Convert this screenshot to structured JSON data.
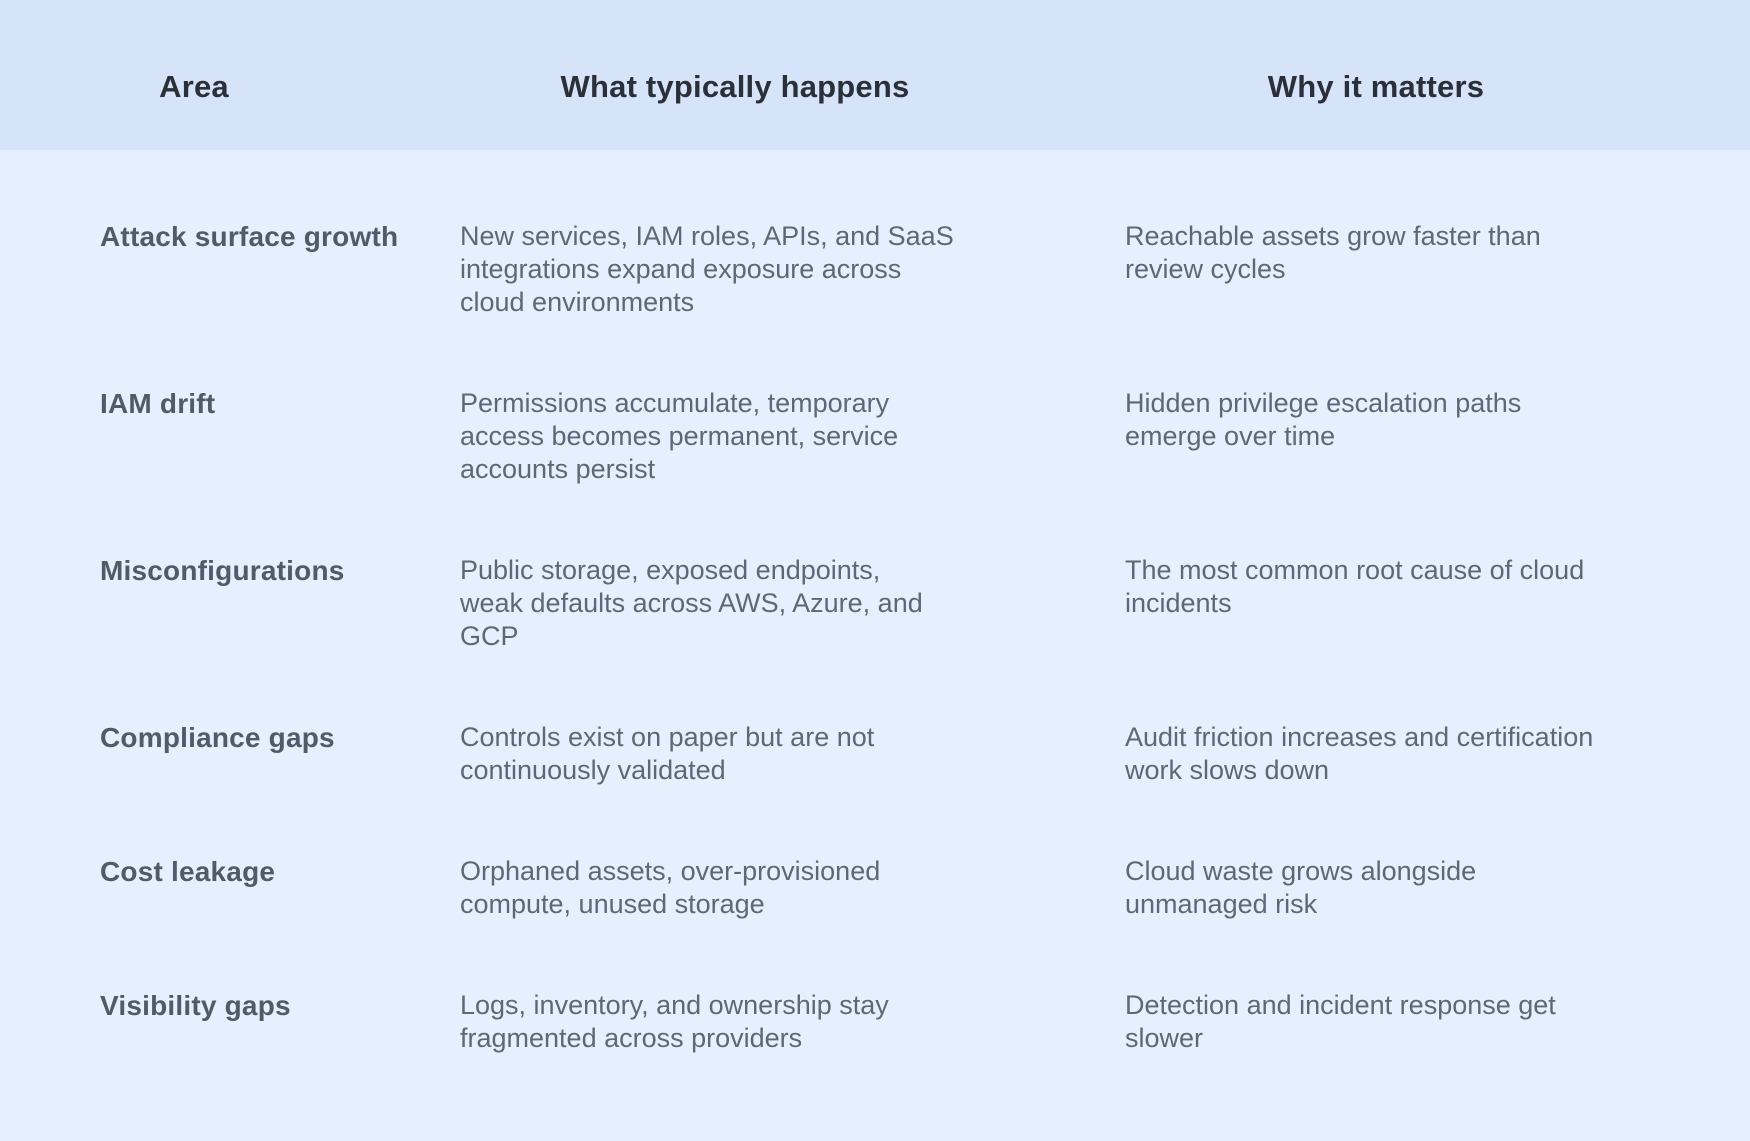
{
  "colors": {
    "header_bg": "#d6e4fa",
    "body_bg": "#e4f0fd",
    "header_text": "#2b2f38",
    "area_text": "#515b68",
    "body_text": "#5e6875"
  },
  "table": {
    "headers": {
      "area": "Area",
      "happens": "What typically happens",
      "matters": "Why it matters"
    },
    "rows": [
      {
        "area": "Attack surface growth",
        "happens_lines": [
          "New services, IAM roles, APIs, and SaaS",
          "integrations expand exposure across",
          "cloud environments"
        ],
        "matters_lines": [
          "Reachable assets grow faster than",
          "review cycles"
        ]
      },
      {
        "area": "IAM drift",
        "happens_lines": [
          "Permissions accumulate, temporary",
          "access becomes permanent, service",
          "accounts persist"
        ],
        "matters_lines": [
          "Hidden privilege escalation paths",
          "emerge over time"
        ]
      },
      {
        "area": "Misconfigurations",
        "happens_lines": [
          "Public storage, exposed endpoints,",
          "weak defaults across AWS, Azure, and",
          "GCP"
        ],
        "matters_lines": [
          "The most common root cause of cloud",
          "incidents"
        ]
      },
      {
        "area": "Compliance gaps",
        "happens_lines": [
          "Controls exist on paper but are not",
          "continuously validated"
        ],
        "matters_lines": [
          "Audit friction increases and certification",
          "work slows down"
        ]
      },
      {
        "area": "Cost leakage",
        "happens_lines": [
          "Orphaned assets, over-provisioned",
          "compute, unused storage"
        ],
        "matters_lines": [
          "Cloud waste grows alongside",
          "unmanaged risk"
        ]
      },
      {
        "area": "Visibility gaps",
        "happens_lines": [
          "Logs, inventory, and ownership stay",
          "fragmented across providers"
        ],
        "matters_lines": [
          "Detection and incident response get",
          "slower"
        ]
      }
    ]
  }
}
